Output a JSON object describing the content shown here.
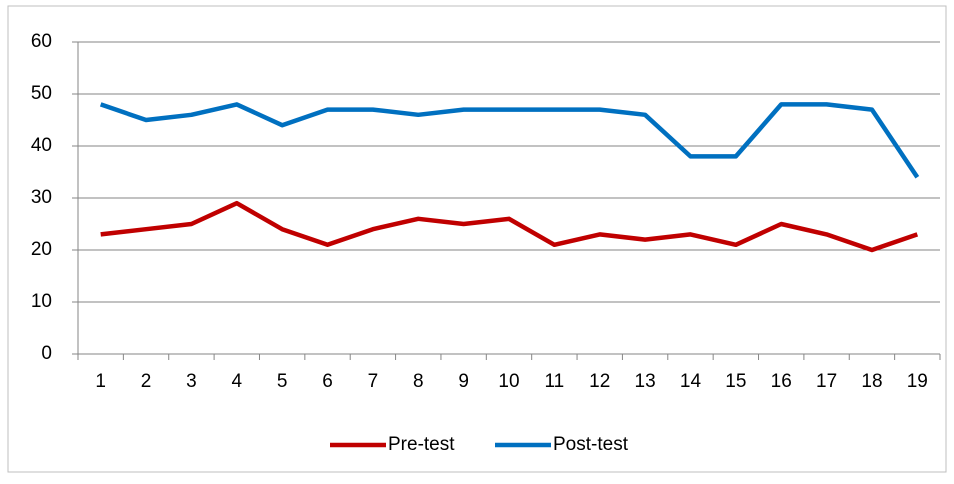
{
  "chart_data": {
    "type": "line",
    "categories": [
      "1",
      "2",
      "3",
      "4",
      "5",
      "6",
      "7",
      "8",
      "9",
      "10",
      "11",
      "12",
      "13",
      "14",
      "15",
      "16",
      "17",
      "18",
      "19"
    ],
    "series": [
      {
        "name": "Pre-test",
        "color": "#c00000",
        "values": [
          23,
          24,
          25,
          29,
          24,
          21,
          24,
          26,
          25,
          26,
          21,
          23,
          22,
          23,
          21,
          25,
          23,
          20,
          23
        ]
      },
      {
        "name": "Post-test",
        "color": "#0070c0",
        "values": [
          48,
          45,
          46,
          48,
          44,
          47,
          47,
          46,
          47,
          47,
          47,
          47,
          46,
          38,
          38,
          48,
          48,
          47,
          34
        ]
      }
    ],
    "ylim": [
      0,
      60
    ],
    "yticks": [
      0,
      10,
      20,
      30,
      40,
      50,
      60
    ],
    "grid": true,
    "legend": "bottom"
  }
}
